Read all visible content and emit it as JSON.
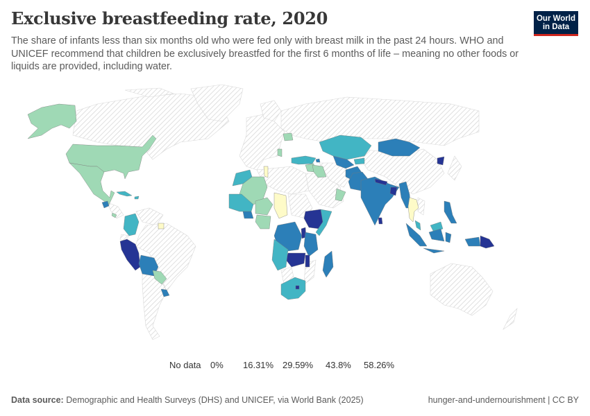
{
  "header": {
    "title": "Exclusive breastfeeding rate, 2020",
    "subtitle": "The share of infants less than six months old who were fed only with breast milk in the past 24 hours. WHO and UNICEF recommend that children be exclusively breastfed for the first 6 months of life – meaning no other foods or liquids are provided, including water.",
    "logo_line1": "Our World",
    "logo_line2": "in Data"
  },
  "legend": {
    "no_data_label": "No data",
    "ticks": [
      "0%",
      "16.31%",
      "29.59%",
      "43.8%",
      "58.26%"
    ],
    "bins": [
      {
        "from": 0,
        "to": 16.31,
        "color": "#fefbc8"
      },
      {
        "from": 16.31,
        "to": 29.59,
        "color": "#9fd9b5"
      },
      {
        "from": 29.59,
        "to": 43.8,
        "color": "#42b5c4"
      },
      {
        "from": 43.8,
        "to": 58.26,
        "color": "#2c7fb8"
      },
      {
        "from": 58.26,
        "to": null,
        "color": "#253494"
      }
    ],
    "no_data_color": "#e8e8e8"
  },
  "footer": {
    "source_label": "Data source:",
    "source_text": "Demographic and Health Surveys (DHS) and UNICEF, via World Bank (2025)",
    "right_text": "hunger-and-undernourishment | CC BY"
  },
  "chart_data": {
    "type": "choropleth",
    "title": "Exclusive breastfeeding rate, 2020",
    "unit": "%",
    "bins": [
      0,
      16.31,
      29.59,
      43.8,
      58.26
    ],
    "regions": [
      {
        "name": "Alaska (United States)",
        "bin": 1
      },
      {
        "name": "United States",
        "bin": 1
      },
      {
        "name": "Canada",
        "bin": null
      },
      {
        "name": "Greenland",
        "bin": null
      },
      {
        "name": "Mexico",
        "bin": 1
      },
      {
        "name": "Guatemala",
        "bin": 3
      },
      {
        "name": "Costa Rica",
        "bin": 1
      },
      {
        "name": "Cuba",
        "bin": 2
      },
      {
        "name": "Dominican Republic",
        "bin": 2
      },
      {
        "name": "Colombia",
        "bin": 2
      },
      {
        "name": "Suriname",
        "bin": 0
      },
      {
        "name": "Peru",
        "bin": 4
      },
      {
        "name": "Bolivia",
        "bin": 3
      },
      {
        "name": "Paraguay",
        "bin": 1
      },
      {
        "name": "Uruguay",
        "bin": 3
      },
      {
        "name": "Brazil",
        "bin": null
      },
      {
        "name": "Argentina",
        "bin": null
      },
      {
        "name": "Belarus",
        "bin": 1
      },
      {
        "name": "Serbia",
        "bin": 1
      },
      {
        "name": "Turkey",
        "bin": 2
      },
      {
        "name": "Armenia",
        "bin": 3
      },
      {
        "name": "Syria",
        "bin": 1
      },
      {
        "name": "Iraq",
        "bin": 1
      },
      {
        "name": "Oman",
        "bin": 1
      },
      {
        "name": "Russia",
        "bin": null
      },
      {
        "name": "Kazakhstan",
        "bin": 2
      },
      {
        "name": "Mongolia",
        "bin": 3
      },
      {
        "name": "Uzbekistan",
        "bin": 3
      },
      {
        "name": "Kyrgyzstan",
        "bin": 2
      },
      {
        "name": "Afghanistan",
        "bin": 3
      },
      {
        "name": "Pakistan",
        "bin": 3
      },
      {
        "name": "India",
        "bin": 3
      },
      {
        "name": "Nepal",
        "bin": 4
      },
      {
        "name": "Bangladesh",
        "bin": 4
      },
      {
        "name": "Myanmar",
        "bin": 3
      },
      {
        "name": "Thailand",
        "bin": 0
      },
      {
        "name": "Sri Lanka",
        "bin": 4
      },
      {
        "name": "North Korea",
        "bin": 4
      },
      {
        "name": "Philippines",
        "bin": 3
      },
      {
        "name": "Malaysia",
        "bin": 2
      },
      {
        "name": "Indonesia",
        "bin": 3
      },
      {
        "name": "Papua New Guinea",
        "bin": 4
      },
      {
        "name": "Australia",
        "bin": null
      },
      {
        "name": "China",
        "bin": null
      },
      {
        "name": "Tunisia",
        "bin": 0
      },
      {
        "name": "Algeria",
        "bin": 1
      },
      {
        "name": "Morocco",
        "bin": 2
      },
      {
        "name": "Mali",
        "bin": 2
      },
      {
        "name": "Niger",
        "bin": 1
      },
      {
        "name": "Chad",
        "bin": 0
      },
      {
        "name": "Nigeria",
        "bin": 1
      },
      {
        "name": "Burkina Faso",
        "bin": 3
      },
      {
        "name": "Ethiopia",
        "bin": 4
      },
      {
        "name": "Somalia",
        "bin": 2
      },
      {
        "name": "DR Congo",
        "bin": 3
      },
      {
        "name": "Rwanda",
        "bin": 4
      },
      {
        "name": "Tanzania",
        "bin": 3
      },
      {
        "name": "Zambia",
        "bin": 4
      },
      {
        "name": "Malawi",
        "bin": 4
      },
      {
        "name": "Angola",
        "bin": 2
      },
      {
        "name": "Madagascar",
        "bin": 3
      },
      {
        "name": "South Africa",
        "bin": 2
      },
      {
        "name": "Lesotho",
        "bin": 4
      },
      {
        "name": "Libya",
        "bin": null
      },
      {
        "name": "Egypt",
        "bin": null
      },
      {
        "name": "Saudi Arabia",
        "bin": null
      }
    ]
  }
}
